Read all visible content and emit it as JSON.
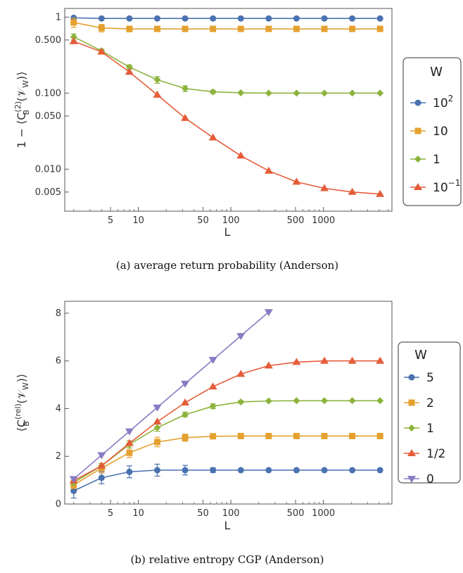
{
  "chart_data": [
    {
      "type": "line",
      "caption": "(a) average return probability (Anderson)",
      "xlabel": "L",
      "ylabel_parts": {
        "prefix": "1 − ⟨C",
        "sub": "B",
        "sup": "(2)",
        "suffix": "(𝒱",
        "sub2": "W",
        "end": ")⟩"
      },
      "xscale": "log",
      "yscale": "log",
      "xlim": [
        1.6,
        5500
      ],
      "ylim": [
        0.0028,
        1.3
      ],
      "xticks": [
        5,
        10,
        50,
        100,
        500,
        1000
      ],
      "xtick_labels": [
        "5",
        "10",
        "50",
        "100",
        "500",
        "1000"
      ],
      "yticks": [
        1,
        0.5,
        0.1,
        0.05,
        0.01,
        0.005
      ],
      "ytick_labels": [
        "1",
        "0.500",
        "0.100",
        "0.050",
        "0.010",
        "0.005"
      ],
      "legend_title": "W",
      "legend_position": "right",
      "x": [
        2,
        4,
        8,
        16,
        32,
        64,
        128,
        256,
        512,
        1024,
        2048,
        4096
      ],
      "series": [
        {
          "name": "10",
          "name_sup": "2",
          "color": "#4a72b0",
          "marker": "circle",
          "values": [
            0.98,
            0.96,
            0.96,
            0.96,
            0.96,
            0.96,
            0.96,
            0.96,
            0.96,
            0.96,
            0.96,
            0.96
          ],
          "err": [
            0,
            0,
            0,
            0,
            0,
            0,
            0,
            0,
            0,
            0,
            0,
            0
          ]
        },
        {
          "name": "10",
          "name_sup": "",
          "color": "#e4a12f",
          "marker": "square",
          "values": [
            0.85,
            0.72,
            0.7,
            0.7,
            0.7,
            0.7,
            0.7,
            0.7,
            0.7,
            0.7,
            0.7,
            0.7
          ],
          "err": [
            0.12,
            0.08,
            0.06,
            0,
            0,
            0,
            0,
            0,
            0,
            0,
            0,
            0
          ]
        },
        {
          "name": "1",
          "name_sup": "",
          "color": "#8cb33c",
          "marker": "diamond",
          "values": [
            0.55,
            0.36,
            0.22,
            0.15,
            0.115,
            0.104,
            0.101,
            0.1,
            0.1,
            0.1,
            0.1,
            0.1
          ],
          "err": [
            0.05,
            0.02,
            0.015,
            0.015,
            0.01,
            0.005,
            0,
            0,
            0,
            0,
            0,
            0
          ]
        },
        {
          "name": "10",
          "name_sup": "−1",
          "color": "#e55c3a",
          "marker": "triangle-up",
          "values": [
            0.48,
            0.35,
            0.19,
            0.095,
            0.047,
            0.026,
            0.015,
            0.0095,
            0.0068,
            0.0056,
            0.005,
            0.0047
          ],
          "err": [
            0,
            0,
            0,
            0,
            0,
            0,
            0,
            0,
            0,
            0,
            0,
            0
          ]
        }
      ]
    },
    {
      "type": "line",
      "caption": "(b) relative entropy CGP (Anderson)",
      "xlabel": "L",
      "ylabel_parts": {
        "prefix": "⟨C",
        "sub": "B",
        "sup": "(rel)",
        "suffix": "(𝒱",
        "sub2": "W",
        "end": ")⟩"
      },
      "xscale": "log",
      "yscale": "linear",
      "xlim": [
        1.6,
        5500
      ],
      "ylim": [
        0,
        8.5
      ],
      "xticks": [
        5,
        10,
        50,
        100,
        500,
        1000
      ],
      "xtick_labels": [
        "5",
        "10",
        "50",
        "100",
        "500",
        "1000"
      ],
      "yticks": [
        0,
        2,
        4,
        6,
        8
      ],
      "ytick_labels": [
        "0",
        "2",
        "4",
        "6",
        "8"
      ],
      "legend_title": "W",
      "legend_position": "right",
      "x": [
        2,
        4,
        8,
        16,
        32,
        64,
        128,
        256,
        512,
        1024,
        2048,
        4096
      ],
      "series": [
        {
          "name": "5",
          "color": "#4a72b0",
          "marker": "circle",
          "values": [
            0.55,
            1.1,
            1.35,
            1.42,
            1.42,
            1.42,
            1.42,
            1.42,
            1.42,
            1.42,
            1.42,
            1.42
          ],
          "err": [
            0.3,
            0.25,
            0.25,
            0.25,
            0.2,
            0.1,
            0,
            0,
            0,
            0,
            0,
            0
          ]
        },
        {
          "name": "2",
          "color": "#e4a12f",
          "marker": "square",
          "values": [
            0.8,
            1.5,
            2.15,
            2.6,
            2.78,
            2.84,
            2.85,
            2.85,
            2.85,
            2.85,
            2.85,
            2.85
          ],
          "err": [
            0.15,
            0.2,
            0.2,
            0.2,
            0.15,
            0.1,
            0,
            0,
            0,
            0,
            0,
            0
          ]
        },
        {
          "name": "1",
          "color": "#8cb33c",
          "marker": "diamond",
          "values": [
            0.9,
            1.6,
            2.5,
            3.2,
            3.75,
            4.1,
            4.28,
            4.32,
            4.33,
            4.33,
            4.33,
            4.33
          ],
          "err": [
            0.1,
            0.1,
            0.15,
            0.15,
            0.1,
            0.1,
            0.05,
            0,
            0,
            0,
            0,
            0
          ]
        },
        {
          "name": "1/2",
          "color": "#e55c3a",
          "marker": "triangle-up",
          "values": [
            0.98,
            1.6,
            2.55,
            3.45,
            4.25,
            4.92,
            5.45,
            5.8,
            5.95,
            6.0,
            6.0,
            6.0
          ],
          "err": [
            0,
            0,
            0,
            0,
            0,
            0,
            0,
            0,
            0,
            0,
            0,
            0
          ]
        },
        {
          "name": "0",
          "color": "#8a7ac3",
          "marker": "triangle-down",
          "values": [
            1.05,
            2.05,
            3.05,
            4.05,
            5.05,
            6.05,
            7.05,
            8.05,
            null,
            null,
            null,
            null
          ],
          "err": [
            0,
            0,
            0,
            0,
            0,
            0,
            0,
            0,
            0,
            0,
            0,
            0
          ]
        }
      ]
    }
  ]
}
